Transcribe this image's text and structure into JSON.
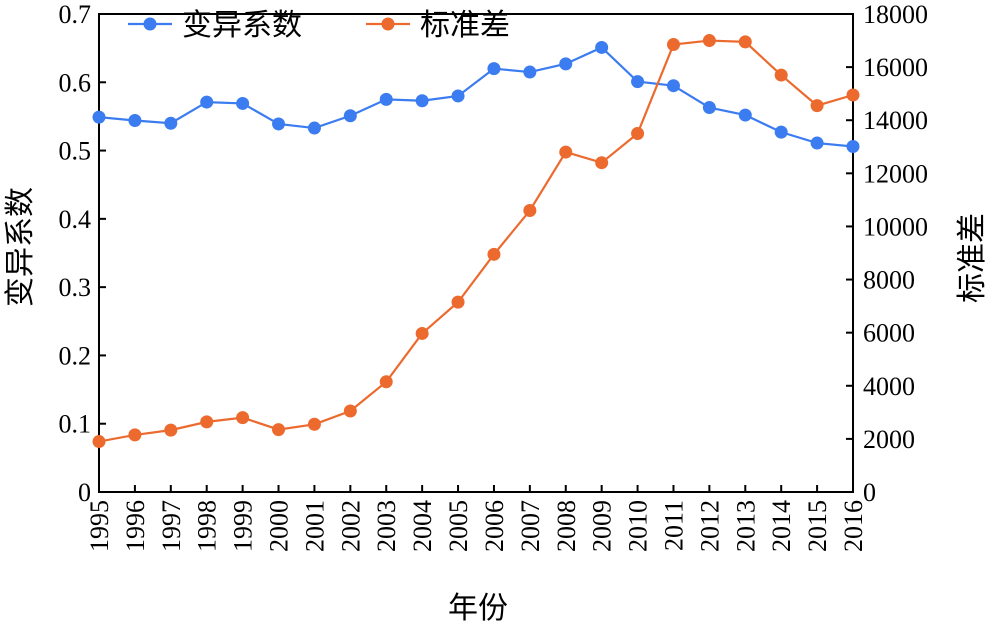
{
  "chart_data": {
    "type": "line",
    "xlabel": "年份",
    "ylabel_left": "变异系数",
    "ylabel_right": "标准差",
    "x": [
      "1995",
      "1996",
      "1997",
      "1998",
      "1999",
      "2000",
      "2001",
      "2002",
      "2003",
      "2004",
      "2005",
      "2006",
      "2007",
      "2008",
      "2009",
      "2010",
      "2011",
      "2012",
      "2013",
      "2014",
      "2015",
      "2016"
    ],
    "ylim_left": [
      0,
      0.7
    ],
    "yticks_left": [
      "0",
      "0.1",
      "0.2",
      "0.3",
      "0.4",
      "0.5",
      "0.6",
      "0.7"
    ],
    "ylim_right": [
      0,
      18000
    ],
    "yticks_right": [
      "0",
      "2000",
      "4000",
      "6000",
      "8000",
      "10000",
      "12000",
      "14000",
      "16000",
      "18000"
    ],
    "legend_position": "top-left",
    "grid": false,
    "series": [
      {
        "name": "变异系数",
        "axis": "left",
        "color": "#3b7cf0",
        "values": [
          0.549,
          0.544,
          0.54,
          0.571,
          0.569,
          0.539,
          0.533,
          0.551,
          0.575,
          0.573,
          0.58,
          0.62,
          0.615,
          0.627,
          0.651,
          0.601,
          0.595,
          0.563,
          0.552,
          0.527,
          0.511,
          0.506
        ]
      },
      {
        "name": "标准差",
        "axis": "right",
        "color": "#ec6a2e",
        "values": [
          1900,
          2150,
          2330,
          2640,
          2800,
          2350,
          2550,
          3050,
          4150,
          5970,
          7150,
          8950,
          10600,
          12800,
          12400,
          13500,
          16850,
          17000,
          16950,
          15700,
          14550,
          14950
        ]
      }
    ]
  }
}
